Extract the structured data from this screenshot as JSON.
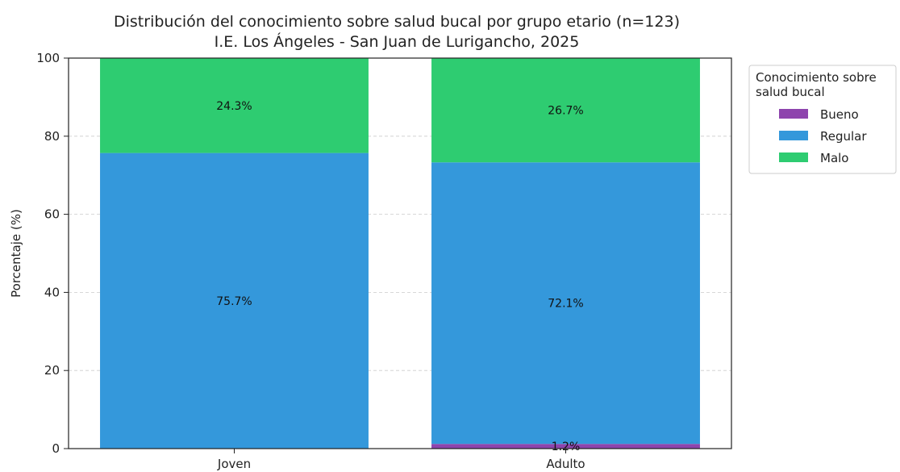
{
  "chart_data": {
    "type": "bar",
    "stacked": true,
    "title": "Distribución del conocimiento sobre salud bucal por grupo etario (n=123)",
    "subtitle": "I.E. Los Ángeles - San Juan de Lurigancho, 2025",
    "xlabel": "",
    "ylabel": "Porcentaje (%)",
    "ylim": [
      0,
      100
    ],
    "yticks": [
      "0",
      "20",
      "40",
      "60",
      "80",
      "100"
    ],
    "categories": [
      "Joven",
      "Adulto"
    ],
    "series": [
      {
        "name": "Bueno",
        "color": "#8e44ad",
        "values": [
          0,
          1.2
        ],
        "labels": [
          "",
          "1.2%"
        ]
      },
      {
        "name": "Regular",
        "color": "#3498db",
        "values": [
          75.7,
          72.1
        ],
        "labels": [
          "75.7%",
          "72.1%"
        ]
      },
      {
        "name": "Malo",
        "color": "#2ecc71",
        "values": [
          24.3,
          26.7
        ],
        "labels": [
          "24.3%",
          "26.7%"
        ]
      }
    ],
    "grid": "horizontal-dashed",
    "legend": {
      "title": "Conocimiento sobre salud bucal",
      "title_lines": [
        "Conocimiento sobre",
        "salud bucal"
      ],
      "placement": "outside-right-top"
    }
  }
}
